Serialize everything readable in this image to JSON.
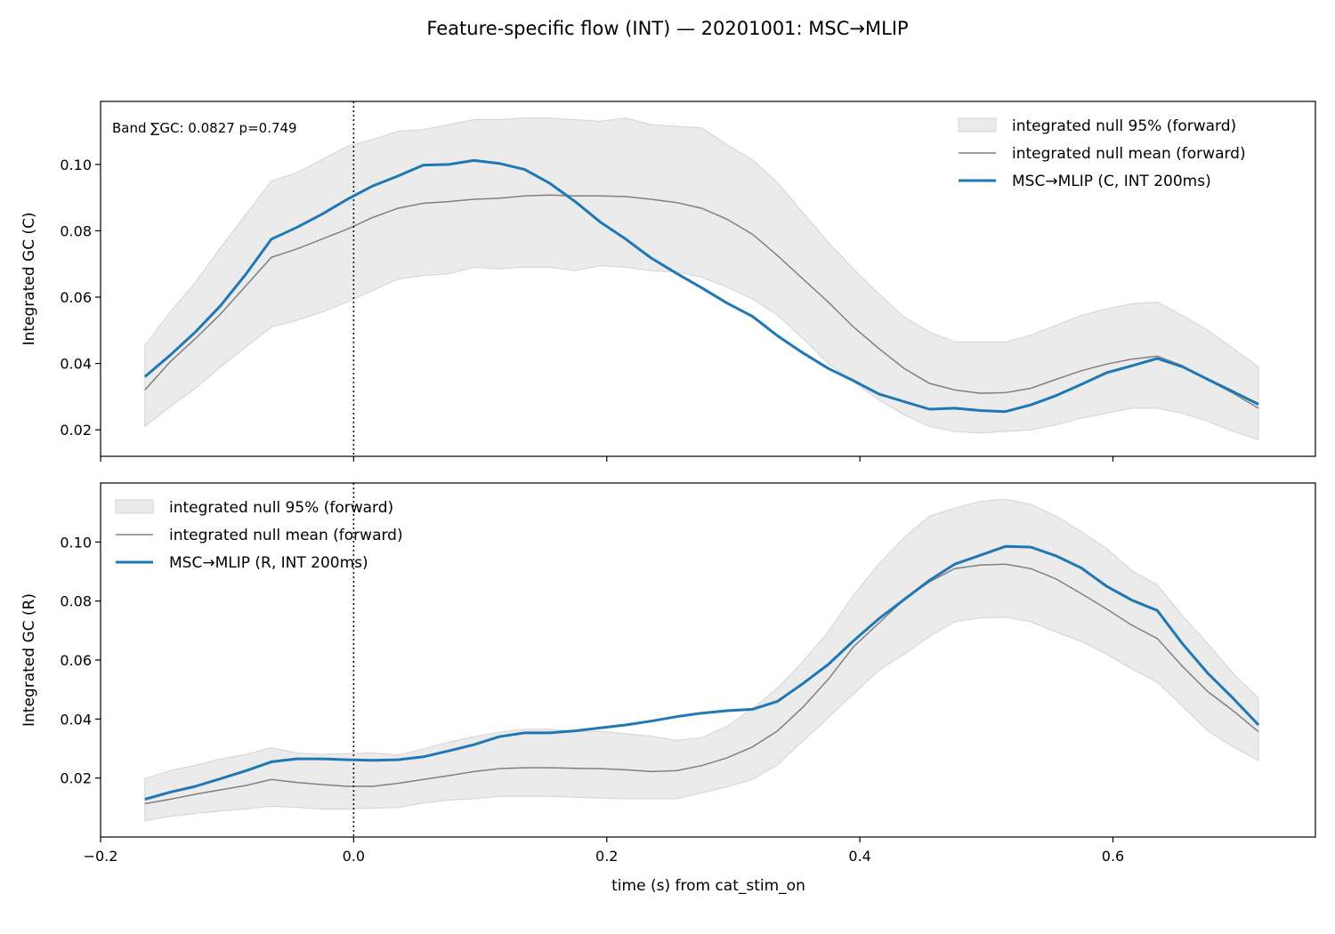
{
  "figure": {
    "title": "Feature-specific flow (INT) — 20201001: MSC→MLIP",
    "xlabel": "time (s) from cat_stim_on"
  },
  "colors": {
    "observed": "#1f77b4",
    "null_mean": "#808080",
    "null_band": "#d3d3d3",
    "axes": "#000000",
    "marker_line": "#000000"
  },
  "chart_data": [
    {
      "type": "line",
      "panel": "top",
      "ylabel": "Integrated GC (C)",
      "annotation": "Band ∑GC: 0.0827  p=0.749",
      "legend_position": "top-right",
      "xlim": [
        -0.2,
        0.76
      ],
      "ylim": [
        0.012,
        0.119
      ],
      "xticks": [
        -0.2,
        0.0,
        0.2,
        0.4,
        0.6
      ],
      "xtick_labels": [
        "",
        "",
        "",
        "",
        ""
      ],
      "yticks": [
        0.02,
        0.04,
        0.06,
        0.08,
        0.1
      ],
      "ytick_labels": [
        "0.02",
        "0.04",
        "0.06",
        "0.08",
        "0.10"
      ],
      "vline_x": 0.0,
      "x": [
        -0.165,
        -0.145,
        -0.125,
        -0.105,
        -0.085,
        -0.065,
        -0.045,
        -0.025,
        -0.005,
        0.015,
        0.035,
        0.055,
        0.075,
        0.095,
        0.115,
        0.135,
        0.155,
        0.175,
        0.195,
        0.215,
        0.235,
        0.255,
        0.275,
        0.295,
        0.315,
        0.335,
        0.355,
        0.375,
        0.395,
        0.415,
        0.435,
        0.455,
        0.475,
        0.495,
        0.515,
        0.535,
        0.555,
        0.575,
        0.595,
        0.615,
        0.635,
        0.655,
        0.675,
        0.695,
        0.715
      ],
      "series": [
        {
          "name": "integrated null 95% (forward)",
          "kind": "band",
          "lower": [
            0.021,
            0.027,
            0.0325,
            0.039,
            0.045,
            0.051,
            0.053,
            0.0555,
            0.0585,
            0.062,
            0.0655,
            0.0665,
            0.067,
            0.069,
            0.0685,
            0.069,
            0.069,
            0.068,
            0.0695,
            0.069,
            0.068,
            0.0675,
            0.066,
            0.063,
            0.0595,
            0.0545,
            0.0475,
            0.04,
            0.0345,
            0.029,
            0.0245,
            0.021,
            0.0195,
            0.019,
            0.0195,
            0.02,
            0.0215,
            0.0235,
            0.025,
            0.0265,
            0.0265,
            0.025,
            0.0225,
            0.0195,
            0.017
          ],
          "upper": [
            0.0455,
            0.0555,
            0.0645,
            0.075,
            0.085,
            0.095,
            0.0975,
            0.1015,
            0.1055,
            0.1075,
            0.11,
            0.1105,
            0.112,
            0.1135,
            0.1135,
            0.114,
            0.114,
            0.1135,
            0.113,
            0.114,
            0.112,
            0.1115,
            0.111,
            0.106,
            0.1015,
            0.0945,
            0.0855,
            0.0765,
            0.0685,
            0.061,
            0.054,
            0.0495,
            0.0465,
            0.0465,
            0.0465,
            0.0485,
            0.0515,
            0.0545,
            0.0565,
            0.058,
            0.0585,
            0.0545,
            0.05,
            0.0445,
            0.039
          ]
        },
        {
          "name": "integrated null mean (forward)",
          "kind": "mean",
          "values": [
            0.032,
            0.0405,
            0.0475,
            0.055,
            0.0635,
            0.072,
            0.0745,
            0.0775,
            0.0805,
            0.084,
            0.0868,
            0.0883,
            0.0888,
            0.0895,
            0.0898,
            0.0905,
            0.0908,
            0.0905,
            0.0905,
            0.0903,
            0.0895,
            0.0885,
            0.0868,
            0.0835,
            0.079,
            0.0725,
            0.0655,
            0.0585,
            0.051,
            0.0445,
            0.0385,
            0.034,
            0.032,
            0.031,
            0.0312,
            0.0325,
            0.0352,
            0.0378,
            0.0398,
            0.0413,
            0.0422,
            0.0393,
            0.035,
            0.031,
            0.0265
          ]
        },
        {
          "name": "MSC→MLIP (C, INT 200ms)",
          "kind": "observed",
          "values": [
            0.036,
            0.0425,
            0.0495,
            0.0575,
            0.067,
            0.0775,
            0.081,
            0.085,
            0.0895,
            0.0935,
            0.0965,
            0.0998,
            0.1,
            0.1012,
            0.1003,
            0.0985,
            0.0943,
            0.0888,
            0.0826,
            0.0775,
            0.0718,
            0.0672,
            0.0628,
            0.0582,
            0.0542,
            0.0483,
            0.0432,
            0.0385,
            0.0348,
            0.0308,
            0.0285,
            0.0262,
            0.0265,
            0.0258,
            0.0255,
            0.0275,
            0.0303,
            0.0337,
            0.0372,
            0.0393,
            0.0415,
            0.039,
            0.0352,
            0.0315,
            0.0277
          ]
        }
      ]
    },
    {
      "type": "line",
      "panel": "bottom",
      "ylabel": "Integrated GC (R)",
      "legend_position": "top-left",
      "xlim": [
        -0.2,
        0.76
      ],
      "ylim": [
        0.0,
        0.12
      ],
      "xticks": [
        -0.2,
        0.0,
        0.2,
        0.4,
        0.6
      ],
      "xtick_labels": [
        "−0.2",
        "0.0",
        "0.2",
        "0.4",
        "0.6"
      ],
      "yticks": [
        0.02,
        0.04,
        0.06,
        0.08,
        0.1
      ],
      "ytick_labels": [
        "0.02",
        "0.04",
        "0.06",
        "0.08",
        "0.10"
      ],
      "vline_x": 0.0,
      "x": [
        -0.165,
        -0.145,
        -0.125,
        -0.105,
        -0.085,
        -0.065,
        -0.045,
        -0.025,
        -0.005,
        0.015,
        0.035,
        0.055,
        0.075,
        0.095,
        0.115,
        0.135,
        0.155,
        0.175,
        0.195,
        0.215,
        0.235,
        0.255,
        0.275,
        0.295,
        0.315,
        0.335,
        0.355,
        0.375,
        0.395,
        0.415,
        0.435,
        0.455,
        0.475,
        0.495,
        0.515,
        0.535,
        0.555,
        0.575,
        0.595,
        0.615,
        0.635,
        0.655,
        0.675,
        0.695,
        0.715
      ],
      "series": [
        {
          "name": "integrated null 95% (forward)",
          "kind": "band",
          "lower": [
            0.0055,
            0.007,
            0.008,
            0.0088,
            0.0095,
            0.0105,
            0.01,
            0.0095,
            0.0095,
            0.0098,
            0.01,
            0.0115,
            0.0125,
            0.013,
            0.0138,
            0.0138,
            0.0138,
            0.0135,
            0.0132,
            0.013,
            0.013,
            0.013,
            0.015,
            0.017,
            0.0195,
            0.0245,
            0.0325,
            0.0405,
            0.0485,
            0.0565,
            0.062,
            0.068,
            0.073,
            0.0743,
            0.0745,
            0.073,
            0.0695,
            0.0663,
            0.062,
            0.057,
            0.0525,
            0.0443,
            0.036,
            0.0305,
            0.026
          ],
          "upper": [
            0.0198,
            0.0225,
            0.0243,
            0.0265,
            0.028,
            0.0303,
            0.0285,
            0.028,
            0.0283,
            0.0285,
            0.0278,
            0.0298,
            0.0322,
            0.034,
            0.0355,
            0.0365,
            0.0365,
            0.0358,
            0.0358,
            0.035,
            0.0342,
            0.0328,
            0.0337,
            0.0375,
            0.0435,
            0.0505,
            0.0595,
            0.0695,
            0.082,
            0.0925,
            0.1015,
            0.1088,
            0.1115,
            0.1138,
            0.1145,
            0.1128,
            0.1088,
            0.1035,
            0.0978,
            0.0903,
            0.0855,
            0.075,
            0.0655,
            0.0555,
            0.047
          ]
        },
        {
          "name": "integrated null mean (forward)",
          "kind": "mean",
          "values": [
            0.0113,
            0.0128,
            0.0145,
            0.016,
            0.0175,
            0.0195,
            0.0185,
            0.0178,
            0.0172,
            0.0172,
            0.0182,
            0.0195,
            0.0208,
            0.0222,
            0.0232,
            0.0235,
            0.0235,
            0.0233,
            0.0232,
            0.0228,
            0.0222,
            0.0225,
            0.0242,
            0.0268,
            0.0305,
            0.036,
            0.044,
            0.0535,
            0.0645,
            0.0725,
            0.0805,
            0.0865,
            0.091,
            0.0922,
            0.0925,
            0.091,
            0.0875,
            0.0825,
            0.0773,
            0.0718,
            0.0673,
            0.0578,
            0.0493,
            0.0428,
            0.0357
          ]
        },
        {
          "name": "MSC→MLIP (R, INT 200ms)",
          "kind": "observed",
          "values": [
            0.0128,
            0.0152,
            0.0172,
            0.0198,
            0.0225,
            0.0255,
            0.0265,
            0.0265,
            0.0262,
            0.026,
            0.0262,
            0.0272,
            0.0292,
            0.0313,
            0.034,
            0.0353,
            0.0353,
            0.036,
            0.037,
            0.038,
            0.0393,
            0.0408,
            0.042,
            0.0428,
            0.0433,
            0.046,
            0.052,
            0.0585,
            0.0665,
            0.074,
            0.0805,
            0.087,
            0.0925,
            0.0955,
            0.0985,
            0.0983,
            0.0953,
            0.0912,
            0.085,
            0.0803,
            0.0768,
            0.0655,
            0.0555,
            0.047,
            0.038
          ]
        }
      ]
    }
  ]
}
